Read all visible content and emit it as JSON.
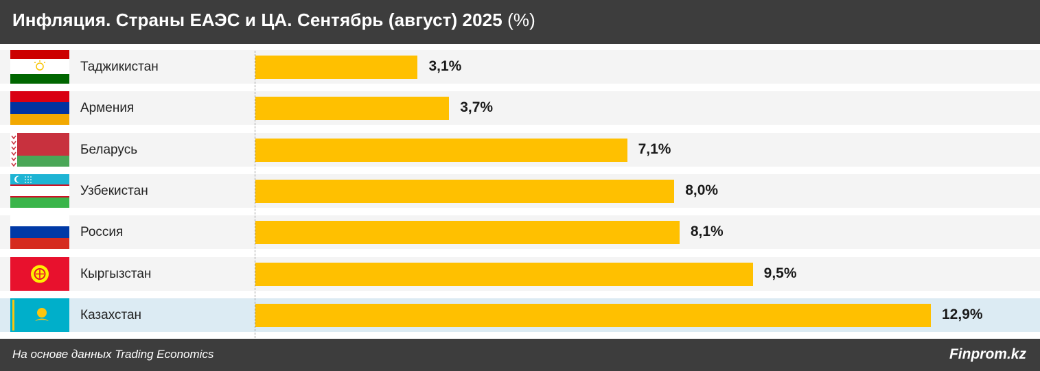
{
  "header": {
    "title": "Инфляция. Страны ЕАЭС и ЦА. Сентябрь (август) 2025",
    "title_suffix": "(%)"
  },
  "chart_data": {
    "type": "bar",
    "orientation": "horizontal",
    "title": "Инфляция. Страны ЕАЭС и ЦА. Сентябрь (август) 2025 (%)",
    "categories": [
      "Таджикистан",
      "Армения",
      "Беларусь",
      "Узбекистан",
      "Россия",
      "Кыргызстан",
      "Казахстан"
    ],
    "values": [
      3.1,
      3.7,
      7.1,
      8.0,
      8.1,
      9.5,
      12.9
    ],
    "value_labels": [
      "3,1%",
      "3,7%",
      "7,1%",
      "8,0%",
      "8,1%",
      "9,5%",
      "12,9%"
    ],
    "highlighted": "Казахстан",
    "flags": [
      "tajikistan-flag",
      "armenia-flag",
      "belarus-flag",
      "uzbekistan-flag",
      "russia-flag",
      "kyrgyzstan-flag",
      "kazakhstan-flag"
    ],
    "xlim": [
      0,
      12.9
    ],
    "grid": false,
    "bar_color": "#ffc000",
    "highlight_row_color": "#dcebf3"
  },
  "footer": {
    "source": "На основе данных Trading Economics",
    "brand": "Finprom.kz"
  },
  "colors": {
    "header_bg": "#3d3d3d",
    "bar": "#ffc000",
    "row_bg": "#f4f4f4",
    "highlight_bg": "#dcebf3"
  }
}
